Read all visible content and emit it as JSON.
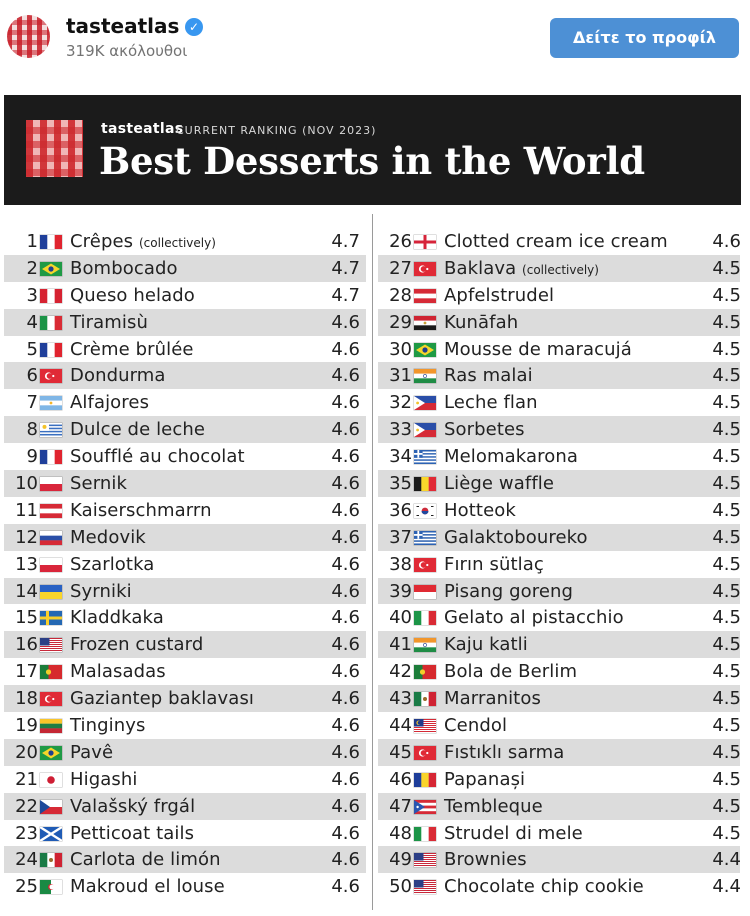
{
  "header": {
    "username": "tasteatlas",
    "verified_icon": "verified-badge-icon",
    "followers": "319K ακόλουθοι",
    "profile_button": "Δείτε το προφίλ"
  },
  "banner": {
    "brand": "tasteatlas",
    "ranking": "CURRENT RANKING (NOV 2023)",
    "title": "Best Desserts in the World"
  },
  "left": [
    {
      "rank": "1",
      "name": "Crêpes",
      "note": "(collectively)",
      "score": "4.7",
      "flag": "fr"
    },
    {
      "rank": "2",
      "name": "Bombocado",
      "note": "",
      "score": "4.7",
      "flag": "br"
    },
    {
      "rank": "3",
      "name": "Queso helado",
      "note": "",
      "score": "4.7",
      "flag": "pe"
    },
    {
      "rank": "4",
      "name": "Tiramisù",
      "note": "",
      "score": "4.6",
      "flag": "it"
    },
    {
      "rank": "5",
      "name": "Crème brûlée",
      "note": "",
      "score": "4.6",
      "flag": "fr"
    },
    {
      "rank": "6",
      "name": "Dondurma",
      "note": "",
      "score": "4.6",
      "flag": "tr"
    },
    {
      "rank": "7",
      "name": "Alfajores",
      "note": "",
      "score": "4.6",
      "flag": "ar"
    },
    {
      "rank": "8",
      "name": "Dulce de leche",
      "note": "",
      "score": "4.6",
      "flag": "uy"
    },
    {
      "rank": "9",
      "name": "Soufflé au chocolat",
      "note": "",
      "score": "4.6",
      "flag": "fr"
    },
    {
      "rank": "10",
      "name": "Sernik",
      "note": "",
      "score": "4.6",
      "flag": "pl"
    },
    {
      "rank": "11",
      "name": "Kaiserschmarrn",
      "note": "",
      "score": "4.6",
      "flag": "at"
    },
    {
      "rank": "12",
      "name": "Medovik",
      "note": "",
      "score": "4.6",
      "flag": "ru"
    },
    {
      "rank": "13",
      "name": "Szarlotka",
      "note": "",
      "score": "4.6",
      "flag": "pl"
    },
    {
      "rank": "14",
      "name": "Syrniki",
      "note": "",
      "score": "4.6",
      "flag": "ua"
    },
    {
      "rank": "15",
      "name": "Kladdkaka",
      "note": "",
      "score": "4.6",
      "flag": "se"
    },
    {
      "rank": "16",
      "name": "Frozen custard",
      "note": "",
      "score": "4.6",
      "flag": "us"
    },
    {
      "rank": "17",
      "name": "Malasadas",
      "note": "",
      "score": "4.6",
      "flag": "pt"
    },
    {
      "rank": "18",
      "name": "Gaziantep baklavası",
      "note": "",
      "score": "4.6",
      "flag": "tr"
    },
    {
      "rank": "19",
      "name": "Tinginys",
      "note": "",
      "score": "4.6",
      "flag": "lt"
    },
    {
      "rank": "20",
      "name": "Pavê",
      "note": "",
      "score": "4.6",
      "flag": "br"
    },
    {
      "rank": "21",
      "name": "Higashi",
      "note": "",
      "score": "4.6",
      "flag": "jp"
    },
    {
      "rank": "22",
      "name": "Valašský frgál",
      "note": "",
      "score": "4.6",
      "flag": "cz"
    },
    {
      "rank": "23",
      "name": "Petticoat tails",
      "note": "",
      "score": "4.6",
      "flag": "sct"
    },
    {
      "rank": "24",
      "name": "Carlota de limón",
      "note": "",
      "score": "4.6",
      "flag": "mx"
    },
    {
      "rank": "25",
      "name": "Makroud el louse",
      "note": "",
      "score": "4.6",
      "flag": "dz"
    }
  ],
  "right": [
    {
      "rank": "26",
      "name": "Clotted cream ice cream",
      "note": "",
      "score": "4.6",
      "flag": "eng"
    },
    {
      "rank": "27",
      "name": "Baklava",
      "note": "(collectively)",
      "score": "4.5",
      "flag": "tr"
    },
    {
      "rank": "28",
      "name": "Apfelstrudel",
      "note": "",
      "score": "4.5",
      "flag": "at"
    },
    {
      "rank": "29",
      "name": "Kunāfah",
      "note": "",
      "score": "4.5",
      "flag": "eg"
    },
    {
      "rank": "30",
      "name": "Mousse de maracujá",
      "note": "",
      "score": "4.5",
      "flag": "br"
    },
    {
      "rank": "31",
      "name": "Ras malai",
      "note": "",
      "score": "4.5",
      "flag": "in"
    },
    {
      "rank": "32",
      "name": "Leche flan",
      "note": "",
      "score": "4.5",
      "flag": "ph"
    },
    {
      "rank": "33",
      "name": "Sorbetes",
      "note": "",
      "score": "4.5",
      "flag": "ph"
    },
    {
      "rank": "34",
      "name": "Melomakarona",
      "note": "",
      "score": "4.5",
      "flag": "gr"
    },
    {
      "rank": "35",
      "name": "Liège waffle",
      "note": "",
      "score": "4.5",
      "flag": "be"
    },
    {
      "rank": "36",
      "name": "Hotteok",
      "note": "",
      "score": "4.5",
      "flag": "kr"
    },
    {
      "rank": "37",
      "name": "Galaktoboureko",
      "note": "",
      "score": "4.5",
      "flag": "gr"
    },
    {
      "rank": "38",
      "name": "Fırın sütlaç",
      "note": "",
      "score": "4.5",
      "flag": "tr"
    },
    {
      "rank": "39",
      "name": "Pisang goreng",
      "note": "",
      "score": "4.5",
      "flag": "id"
    },
    {
      "rank": "40",
      "name": "Gelato al pistacchio",
      "note": "",
      "score": "4.5",
      "flag": "it"
    },
    {
      "rank": "41",
      "name": "Kaju katli",
      "note": "",
      "score": "4.5",
      "flag": "in"
    },
    {
      "rank": "42",
      "name": "Bola de Berlim",
      "note": "",
      "score": "4.5",
      "flag": "pt"
    },
    {
      "rank": "43",
      "name": "Marranitos",
      "note": "",
      "score": "4.5",
      "flag": "mx"
    },
    {
      "rank": "44",
      "name": "Cendol",
      "note": "",
      "score": "4.5",
      "flag": "my"
    },
    {
      "rank": "45",
      "name": "Fıstıklı sarma",
      "note": "",
      "score": "4.5",
      "flag": "tr"
    },
    {
      "rank": "46",
      "name": "Papanași",
      "note": "",
      "score": "4.5",
      "flag": "ro"
    },
    {
      "rank": "47",
      "name": "Tembleque",
      "note": "",
      "score": "4.5",
      "flag": "pr"
    },
    {
      "rank": "48",
      "name": "Strudel di mele",
      "note": "",
      "score": "4.5",
      "flag": "it"
    },
    {
      "rank": "49",
      "name": "Brownies",
      "note": "",
      "score": "4.4",
      "flag": "us"
    },
    {
      "rank": "50",
      "name": "Chocolate chip cookie",
      "note": "",
      "score": "4.4",
      "flag": "us"
    }
  ]
}
